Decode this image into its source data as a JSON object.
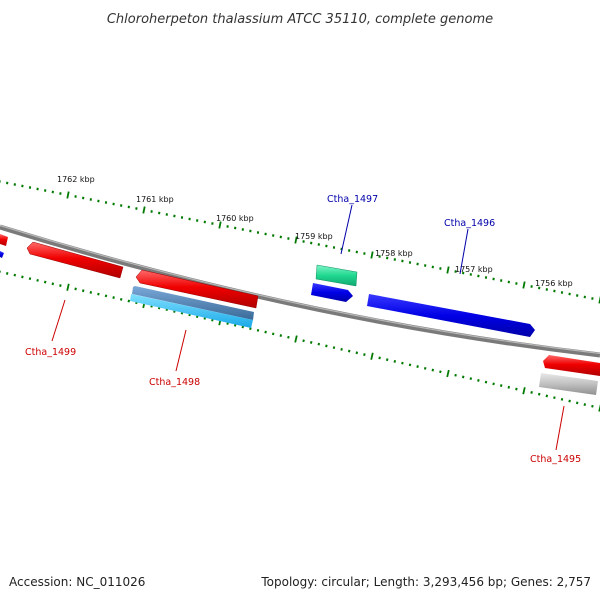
{
  "title": "Chloroherpeton thalassium ATCC 35110, complete genome",
  "footer": {
    "accession": "Accession: NC_011026",
    "summary": "Topology: circular; Length: 3,293,456 bp; Genes: 2,757"
  },
  "ticks": [
    "1762 kbp",
    "1761 kbp",
    "1760 kbp",
    "1759 kbp",
    "1758 kbp",
    "1757 kbp",
    "1756 kbp"
  ],
  "genes": [
    {
      "id": "Ctha_1497",
      "color": "#0000aa"
    },
    {
      "id": "Ctha_1496",
      "color": "#0000aa"
    },
    {
      "id": "Ctha_1499",
      "color": "#cc0000"
    },
    {
      "id": "Ctha_1498",
      "color": "#cc0000"
    },
    {
      "id": "Ctha_1495",
      "color": "#cc0000"
    }
  ],
  "colors": {
    "backbone": "#808080",
    "tick": "#007a00",
    "forward_cds": "#0000e0",
    "reverse_cds": "#e00000",
    "rna": "#20d890",
    "teal": "#30a0e0",
    "pseudo": "#b0b0b0"
  }
}
